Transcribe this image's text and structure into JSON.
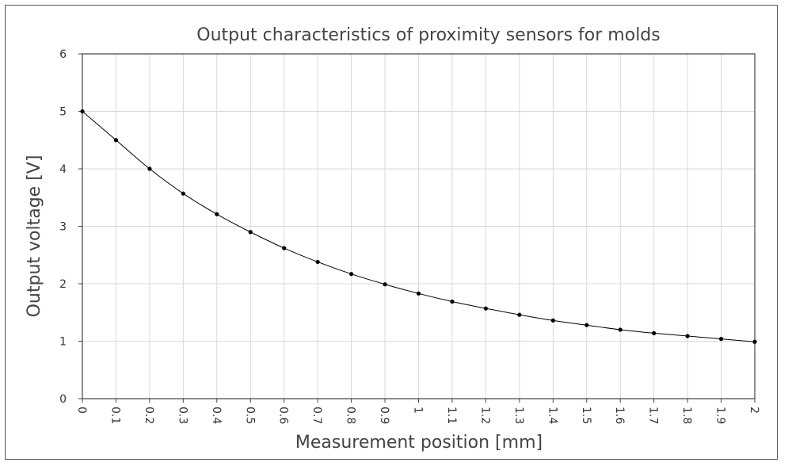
{
  "chart_data": {
    "type": "line",
    "title": "Output characteristics of proximity sensors for molds",
    "xlabel": "Measurement position [mm]",
    "ylabel": "Output voltage [V]",
    "xlim": [
      0,
      2
    ],
    "ylim": [
      0,
      6
    ],
    "grid": true,
    "x_tick_labels": [
      "0",
      "0.1",
      "0.2",
      "0.3",
      "0.4",
      "0.5",
      "0.6",
      "0.7",
      "0.8",
      "0.9",
      "1",
      "1.1",
      "1.2",
      "1.3",
      "1.4",
      "1.5",
      "1.6",
      "1.7",
      "1.8",
      "1.9",
      "2"
    ],
    "y_tick_labels": [
      "0",
      "1",
      "2",
      "3",
      "4",
      "5",
      "6"
    ],
    "series": [
      {
        "name": "Output voltage",
        "x": [
          0,
          0.1,
          0.2,
          0.3,
          0.4,
          0.5,
          0.6,
          0.7,
          0.8,
          0.9,
          1.0,
          1.1,
          1.2,
          1.3,
          1.4,
          1.5,
          1.6,
          1.7,
          1.8,
          1.9,
          2.0
        ],
        "y": [
          5.0,
          4.5,
          4.0,
          3.57,
          3.21,
          2.9,
          2.62,
          2.38,
          2.17,
          1.99,
          1.83,
          1.69,
          1.57,
          1.46,
          1.36,
          1.28,
          1.2,
          1.14,
          1.09,
          1.04,
          0.99
        ]
      }
    ],
    "colors": {
      "line": "#000000",
      "marker": "#000000",
      "grid": "#d9d9d9",
      "axis": "#444444"
    }
  }
}
